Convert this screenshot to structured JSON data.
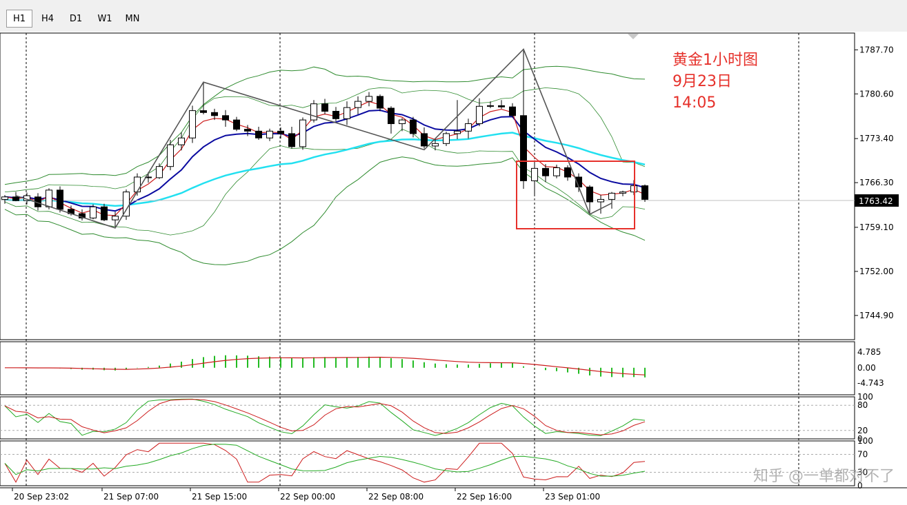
{
  "timeframes": [
    {
      "label": "H1",
      "active": true
    },
    {
      "label": "H4",
      "active": false
    },
    {
      "label": "D1",
      "active": false
    },
    {
      "label": "W1",
      "active": false
    },
    {
      "label": "MN",
      "active": false
    }
  ],
  "annotation": {
    "line1": "黄金1小时图",
    "line2": "9月23日",
    "line3": "14:05"
  },
  "watermark": "知乎 @一单都对不了",
  "colors": {
    "bull_body": "#ffffff",
    "bear_body": "#000000",
    "ma_fast": "#cc1a1a",
    "ma_mid": "#0a0aa0",
    "ma_slow": "#22e0f0",
    "bands": "#2e8b2e",
    "macd_hist": "#22bb22",
    "signal": "#cc1a1a",
    "highlight_box": "#e6302a",
    "bid_line": "#c0c0c0"
  },
  "chart_data": {
    "type": "candlestick",
    "symbol_timeframe": "H1",
    "price_axis": {
      "ylim": [
        1741.0,
        1790.4
      ],
      "ticks": [
        "1787.70",
        "1780.60",
        "1773.40",
        "1766.30",
        "1759.10",
        "1752.00",
        "1744.90"
      ]
    },
    "current_price": "1763.42",
    "time_labels": [
      "20 Sep 23:02",
      "21 Sep 07:00",
      "21 Sep 15:00",
      "22 Sep 00:00",
      "22 Sep 08:00",
      "22 Sep 16:00",
      "23 Sep 01:00"
    ],
    "candles": [
      [
        1763.6,
        1764.3,
        1762.9,
        1764.0
      ],
      [
        1764.0,
        1764.8,
        1763.3,
        1763.4
      ],
      [
        1763.4,
        1764.7,
        1762.8,
        1764.2
      ],
      [
        1764.0,
        1764.6,
        1761.8,
        1762.4
      ],
      [
        1762.4,
        1765.4,
        1762.0,
        1765.1
      ],
      [
        1765.1,
        1765.7,
        1761.5,
        1762.0
      ],
      [
        1762.0,
        1762.6,
        1761.0,
        1761.3
      ],
      [
        1761.3,
        1762.0,
        1760.2,
        1760.6
      ],
      [
        1760.6,
        1762.8,
        1760.4,
        1762.4
      ],
      [
        1762.4,
        1762.9,
        1760.1,
        1760.3
      ],
      [
        1760.3,
        1761.6,
        1759.2,
        1760.9
      ],
      [
        1760.9,
        1765.2,
        1760.3,
        1764.8
      ],
      [
        1764.8,
        1767.8,
        1764.2,
        1767.2
      ],
      [
        1767.2,
        1768.0,
        1766.3,
        1767.1
      ],
      [
        1767.1,
        1769.4,
        1766.9,
        1768.9
      ],
      [
        1768.9,
        1773.2,
        1768.3,
        1772.4
      ],
      [
        1772.4,
        1774.4,
        1771.5,
        1773.5
      ],
      [
        1773.5,
        1778.7,
        1772.7,
        1777.9
      ],
      [
        1777.9,
        1782.4,
        1777.3,
        1777.6
      ],
      [
        1777.6,
        1778.2,
        1776.4,
        1777.1
      ],
      [
        1777.1,
        1778.0,
        1775.3,
        1776.4
      ],
      [
        1776.4,
        1776.9,
        1774.6,
        1774.9
      ],
      [
        1774.9,
        1775.6,
        1773.8,
        1774.6
      ],
      [
        1774.6,
        1775.3,
        1773.2,
        1773.5
      ],
      [
        1773.5,
        1775.0,
        1773.0,
        1774.6
      ],
      [
        1774.6,
        1775.2,
        1773.4,
        1774.2
      ],
      [
        1774.2,
        1775.3,
        1771.8,
        1772.1
      ],
      [
        1772.1,
        1776.8,
        1771.6,
        1776.4
      ],
      [
        1776.4,
        1779.6,
        1776.0,
        1779.0
      ],
      [
        1779.0,
        1779.8,
        1777.3,
        1777.8
      ],
      [
        1777.8,
        1778.5,
        1776.2,
        1776.6
      ],
      [
        1776.6,
        1779.4,
        1775.6,
        1778.4
      ],
      [
        1778.4,
        1780.2,
        1777.3,
        1779.4
      ],
      [
        1779.4,
        1780.9,
        1778.6,
        1780.2
      ],
      [
        1780.2,
        1780.5,
        1777.8,
        1778.3
      ],
      [
        1778.3,
        1778.6,
        1774.2,
        1775.8
      ],
      [
        1775.8,
        1776.7,
        1774.6,
        1776.4
      ],
      [
        1776.4,
        1776.9,
        1773.6,
        1774.2
      ],
      [
        1774.2,
        1775.2,
        1771.8,
        1772.2
      ],
      [
        1772.2,
        1773.4,
        1771.5,
        1772.6
      ],
      [
        1772.6,
        1774.5,
        1772.2,
        1774.2
      ],
      [
        1774.2,
        1779.6,
        1773.3,
        1774.6
      ],
      [
        1774.6,
        1776.6,
        1773.4,
        1775.8
      ],
      [
        1775.8,
        1779.9,
        1775.4,
        1778.6
      ],
      [
        1778.6,
        1779.4,
        1778.3,
        1778.7
      ],
      [
        1778.7,
        1779.6,
        1778.2,
        1778.5
      ],
      [
        1778.5,
        1779.1,
        1776.8,
        1777.1
      ],
      [
        1777.1,
        1787.6,
        1765.3,
        1766.6
      ],
      [
        1766.6,
        1769.9,
        1764.2,
        1768.6
      ],
      [
        1768.6,
        1769.3,
        1766.4,
        1767.4
      ],
      [
        1767.4,
        1769.2,
        1767.0,
        1768.7
      ],
      [
        1768.7,
        1769.1,
        1766.6,
        1767.2
      ],
      [
        1767.2,
        1767.8,
        1764.8,
        1765.6
      ],
      [
        1765.6,
        1765.9,
        1761.2,
        1763.2
      ],
      [
        1763.2,
        1764.3,
        1761.3,
        1763.6
      ],
      [
        1763.6,
        1764.8,
        1762.1,
        1764.6
      ],
      [
        1764.6,
        1765.0,
        1764.1,
        1764.8
      ],
      [
        1764.8,
        1766.7,
        1764.3,
        1765.8
      ],
      [
        1765.8,
        1766.0,
        1763.2,
        1763.6
      ]
    ],
    "zigzag_pivots": [
      {
        "index": 1,
        "price": 1764.2
      },
      {
        "index": 10,
        "price": 1759.0
      },
      {
        "index": 18,
        "price": 1782.5
      },
      {
        "index": 38,
        "price": 1771.6
      },
      {
        "index": 47,
        "price": 1787.8
      },
      {
        "index": 53,
        "price": 1761.2
      },
      {
        "index": 55,
        "price": 1763.0
      }
    ],
    "macd_panel": {
      "ticks": [
        "4.785",
        "0.00",
        "-4.743"
      ],
      "ylim": [
        -8.3,
        8.0
      ]
    },
    "stochastic_panel": {
      "ticks": [
        "100",
        "80",
        "20",
        "0"
      ],
      "ylim": [
        0,
        100
      ]
    },
    "rsi_panel": {
      "ticks": [
        "100",
        "70",
        "30",
        "0"
      ],
      "ylim": [
        0,
        100
      ]
    }
  }
}
